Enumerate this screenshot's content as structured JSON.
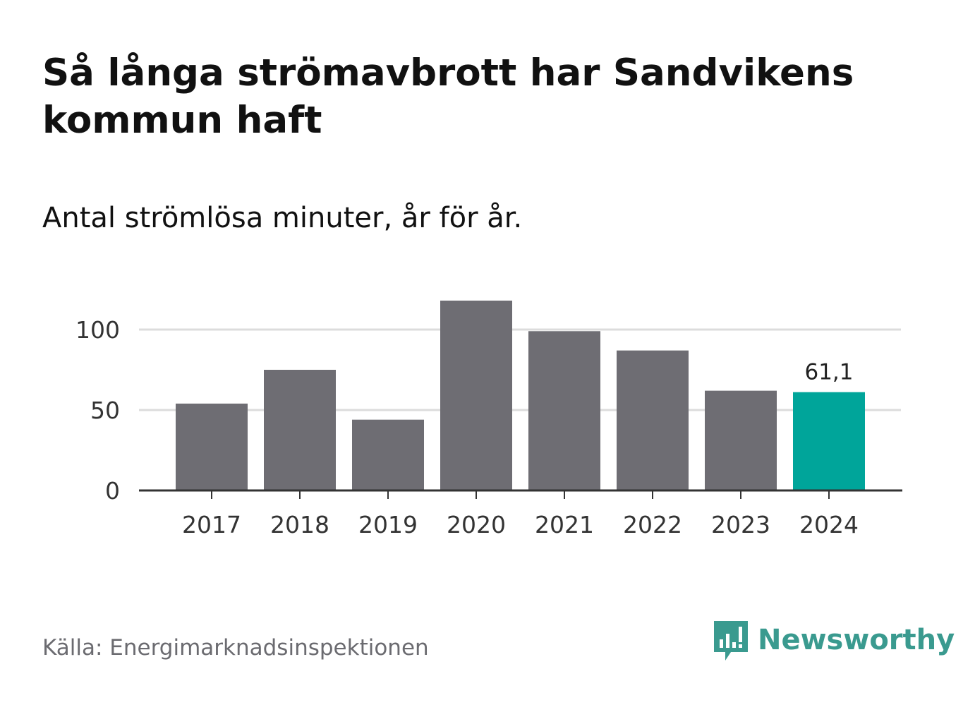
{
  "title": "Så långa strömavbrott har Sandvikens kommun haft",
  "subtitle": "Antal strömlösa minuter, år för år.",
  "source": "Källa: Energimarknadsinspektionen",
  "brand": {
    "name": "Newsworthy",
    "color": "#3a9a8f",
    "icon": "newsworthy-logo-icon"
  },
  "colors": {
    "bar": "#6e6d73",
    "highlight": "#00a59a",
    "grid": "#dcdcdc",
    "axis": "#333333",
    "text": "#333333"
  },
  "chart_data": {
    "type": "bar",
    "title": "Så långa strömavbrott har Sandvikens kommun haft",
    "subtitle": "Antal strömlösa minuter, år för år.",
    "xlabel": "",
    "ylabel": "",
    "categories": [
      "2017",
      "2018",
      "2019",
      "2020",
      "2021",
      "2022",
      "2023",
      "2024"
    ],
    "values": [
      54,
      75,
      44,
      118,
      99,
      87,
      62,
      61.1
    ],
    "highlight_index": 7,
    "ylim": [
      0,
      120
    ],
    "yticks": [
      0,
      50,
      100
    ],
    "ytick_labels": [
      "0",
      "50",
      "100"
    ],
    "grid": true,
    "data_labels": [
      {
        "index": 7,
        "text": "61,1"
      }
    ]
  }
}
